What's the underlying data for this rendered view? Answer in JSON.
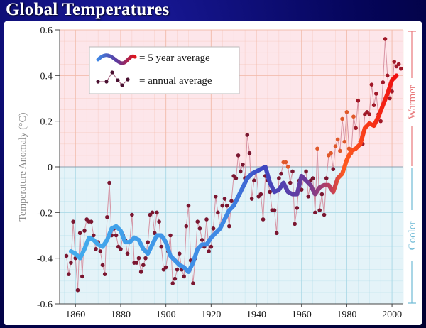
{
  "title": "Global Temperatures",
  "colors": {
    "warm_bg": "#fde6ea",
    "cool_bg": "#e4f3f8",
    "warm_grid": "#f2b9a8",
    "cool_grid": "#a8d8e6",
    "annual_marker": "#7a1630",
    "warmer_label": "#e8787a",
    "cooler_label": "#6fbad6",
    "cold_line": "#3fa6ea",
    "mid_line": "#3a4ac0",
    "hot_line": "#f3180c"
  },
  "chart_data": {
    "type": "line",
    "title": "Global Temperatures",
    "xlabel": "",
    "ylabel": "Temperature Anomaly (°C)",
    "xlim": [
      1853,
      2005
    ],
    "ylim": [
      -0.6,
      0.6
    ],
    "x_ticks": [
      1860,
      1880,
      1900,
      1920,
      1940,
      1960,
      1980,
      2000
    ],
    "x_tick_labels": [
      "1860",
      "1880",
      "1900",
      "1920",
      "1940",
      "1960",
      "1980",
      "2000"
    ],
    "y_ticks": [
      0.6,
      0.4,
      0.2,
      0,
      -0.2,
      -0.4,
      -0.6
    ],
    "y_tick_labels": [
      "0.6",
      "0.4",
      "0.2",
      "0",
      "-0.2",
      "-0.4",
      "-0.6"
    ],
    "grid": true,
    "side_labels": {
      "warmer": "Warmer",
      "cooler": "Cooler"
    },
    "legend": {
      "position": "top-left",
      "entries": [
        "= 5 year average",
        "= annual average"
      ]
    },
    "series": [
      {
        "name": "annual average",
        "style": "thin line with dot markers",
        "x": [
          1856,
          1857,
          1858,
          1859,
          1860,
          1861,
          1862,
          1863,
          1864,
          1865,
          1866,
          1867,
          1868,
          1869,
          1870,
          1871,
          1872,
          1873,
          1874,
          1875,
          1876,
          1877,
          1878,
          1879,
          1880,
          1881,
          1882,
          1883,
          1884,
          1885,
          1886,
          1887,
          1888,
          1889,
          1890,
          1891,
          1892,
          1893,
          1894,
          1895,
          1896,
          1897,
          1898,
          1899,
          1900,
          1901,
          1902,
          1903,
          1904,
          1905,
          1906,
          1907,
          1908,
          1909,
          1910,
          1911,
          1912,
          1913,
          1914,
          1915,
          1916,
          1917,
          1918,
          1919,
          1920,
          1921,
          1922,
          1923,
          1924,
          1925,
          1926,
          1927,
          1928,
          1929,
          1930,
          1931,
          1932,
          1933,
          1934,
          1935,
          1936,
          1937,
          1938,
          1939,
          1940,
          1941,
          1942,
          1943,
          1944,
          1945,
          1946,
          1947,
          1948,
          1949,
          1950,
          1951,
          1952,
          1953,
          1954,
          1955,
          1956,
          1957,
          1958,
          1959,
          1960,
          1961,
          1962,
          1963,
          1964,
          1965,
          1966,
          1967,
          1968,
          1969,
          1970,
          1971,
          1972,
          1973,
          1974,
          1975,
          1976,
          1977,
          1978,
          1979,
          1980,
          1981,
          1982,
          1983,
          1984,
          1985,
          1986,
          1987,
          1988,
          1989,
          1990,
          1991,
          1992,
          1993,
          1994,
          1995,
          1996,
          1997,
          1998,
          1999,
          2000,
          2001,
          2002,
          2003,
          2004
        ],
        "values": [
          -0.39,
          -0.47,
          -0.42,
          -0.24,
          -0.4,
          -0.54,
          -0.29,
          -0.48,
          -0.28,
          -0.23,
          -0.24,
          -0.24,
          -0.3,
          -0.36,
          -0.33,
          -0.37,
          -0.43,
          -0.47,
          -0.22,
          -0.07,
          -0.3,
          -0.27,
          -0.3,
          -0.35,
          -0.36,
          -0.3,
          -0.32,
          -0.38,
          -0.33,
          -0.21,
          -0.42,
          -0.42,
          -0.4,
          -0.46,
          -0.43,
          -0.4,
          -0.33,
          -0.21,
          -0.2,
          -0.29,
          -0.2,
          -0.24,
          -0.35,
          -0.45,
          -0.44,
          -0.37,
          -0.3,
          -0.51,
          -0.49,
          -0.45,
          -0.38,
          -0.45,
          -0.48,
          -0.26,
          -0.17,
          -0.41,
          -0.51,
          -0.4,
          -0.24,
          -0.27,
          -0.32,
          -0.35,
          -0.23,
          -0.37,
          -0.35,
          -0.27,
          -0.13,
          -0.2,
          -0.27,
          -0.17,
          -0.14,
          -0.17,
          -0.26,
          -0.15,
          -0.04,
          -0.05,
          0.05,
          -0.02,
          0.01,
          -0.05,
          0.14,
          0.06,
          -0.14,
          -0.06,
          -0.02,
          -0.13,
          -0.12,
          -0.23,
          -0.04,
          -0.06,
          -0.11,
          -0.19,
          -0.19,
          -0.29,
          -0.05,
          -0.03,
          0.02,
          0.02,
          0.0,
          -0.07,
          -0.02,
          -0.25,
          -0.18,
          -0.06,
          -0.1,
          -0.05,
          -0.02,
          -0.13,
          -0.06,
          -0.05,
          -0.2,
          0.08,
          -0.19,
          -0.12,
          -0.21,
          -0.05,
          0.05,
          0.06,
          -0.01,
          0.09,
          0.12,
          0.07,
          0.21,
          0.11,
          0.24,
          0.08,
          0.06,
          0.22,
          0.17,
          0.29,
          0.11,
          0.1,
          0.23,
          0.24,
          0.23,
          0.36,
          0.27,
          0.32,
          0.23,
          0.2,
          0.37,
          0.56,
          0.4,
          0.3,
          0.33,
          0.46,
          0.44,
          0.45,
          0.43
        ]
      },
      {
        "name": "5 year average",
        "style": "thick colored line (blue = cool, red = warm)",
        "x": [
          1858,
          1860,
          1862,
          1864,
          1866,
          1868,
          1870,
          1872,
          1874,
          1876,
          1878,
          1880,
          1882,
          1884,
          1886,
          1888,
          1890,
          1892,
          1894,
          1896,
          1898,
          1900,
          1902,
          1904,
          1906,
          1908,
          1910,
          1912,
          1914,
          1916,
          1918,
          1920,
          1922,
          1924,
          1926,
          1928,
          1930,
          1932,
          1934,
          1936,
          1938,
          1940,
          1942,
          1944,
          1946,
          1948,
          1950,
          1952,
          1954,
          1956,
          1958,
          1960,
          1962,
          1964,
          1966,
          1968,
          1970,
          1972,
          1974,
          1976,
          1978,
          1980,
          1982,
          1984,
          1986,
          1988,
          1990,
          1992,
          1994,
          1996,
          1998,
          2000,
          2002
        ],
        "values": [
          -0.37,
          -0.38,
          -0.4,
          -0.36,
          -0.31,
          -0.32,
          -0.34,
          -0.35,
          -0.32,
          -0.27,
          -0.26,
          -0.28,
          -0.33,
          -0.33,
          -0.31,
          -0.32,
          -0.36,
          -0.38,
          -0.34,
          -0.3,
          -0.3,
          -0.33,
          -0.39,
          -0.41,
          -0.43,
          -0.44,
          -0.46,
          -0.42,
          -0.36,
          -0.34,
          -0.34,
          -0.31,
          -0.29,
          -0.27,
          -0.23,
          -0.19,
          -0.17,
          -0.13,
          -0.09,
          -0.05,
          -0.03,
          -0.02,
          -0.01,
          0.0,
          -0.07,
          -0.11,
          -0.1,
          -0.07,
          -0.11,
          -0.12,
          -0.12,
          -0.04,
          -0.06,
          -0.08,
          -0.12,
          -0.09,
          -0.08,
          -0.08,
          -0.11,
          -0.05,
          -0.03,
          0.03,
          0.07,
          0.08,
          0.1,
          0.17,
          0.19,
          0.18,
          0.22,
          0.27,
          0.32,
          0.38,
          0.4
        ]
      }
    ]
  }
}
